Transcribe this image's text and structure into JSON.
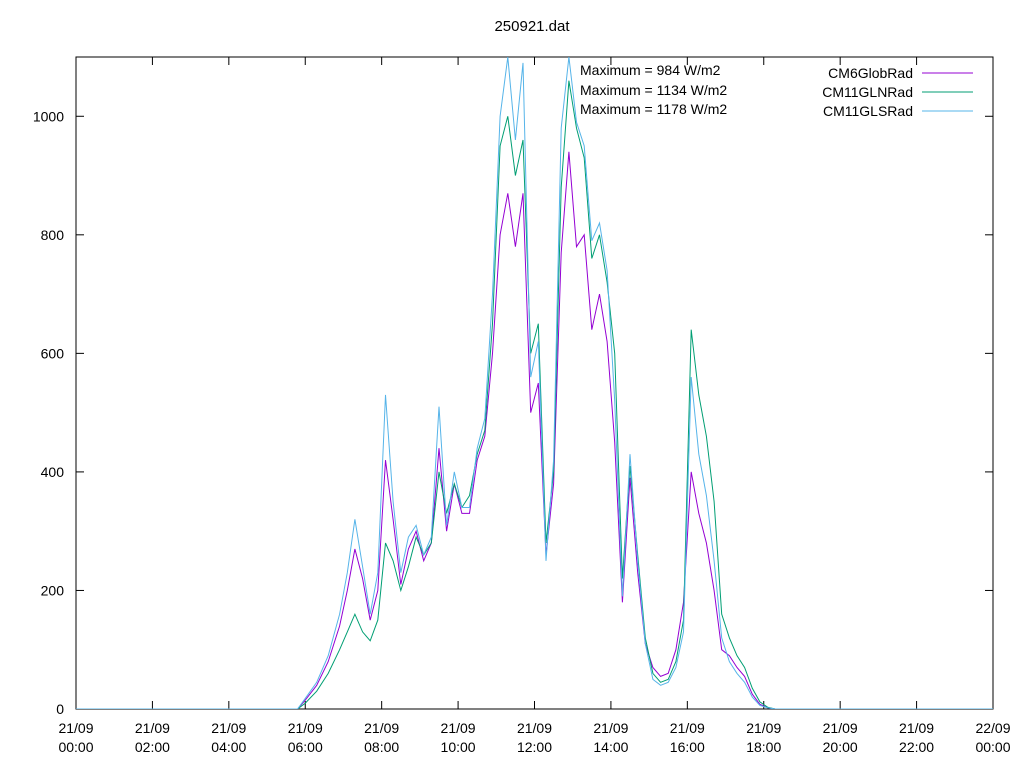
{
  "chart_data": {
    "type": "line",
    "title": "250921.dat",
    "xlabel": "",
    "ylabel": "",
    "x_unit": "hours",
    "xlim": [
      0,
      24
    ],
    "ylim": [
      0,
      1100
    ],
    "x_ticks": [
      {
        "x": 0,
        "l1": "21/09",
        "l2": "00:00"
      },
      {
        "x": 2,
        "l1": "21/09",
        "l2": "02:00"
      },
      {
        "x": 4,
        "l1": "21/09",
        "l2": "04:00"
      },
      {
        "x": 6,
        "l1": "21/09",
        "l2": "06:00"
      },
      {
        "x": 8,
        "l1": "21/09",
        "l2": "08:00"
      },
      {
        "x": 10,
        "l1": "21/09",
        "l2": "10:00"
      },
      {
        "x": 12,
        "l1": "21/09",
        "l2": "12:00"
      },
      {
        "x": 14,
        "l1": "21/09",
        "l2": "14:00"
      },
      {
        "x": 16,
        "l1": "21/09",
        "l2": "16:00"
      },
      {
        "x": 18,
        "l1": "21/09",
        "l2": "18:00"
      },
      {
        "x": 20,
        "l1": "21/09",
        "l2": "20:00"
      },
      {
        "x": 22,
        "l1": "21/09",
        "l2": "22:00"
      },
      {
        "x": 24,
        "l1": "22/09",
        "l2": "00:00"
      }
    ],
    "y_ticks": [
      0,
      200,
      400,
      600,
      800,
      1000
    ],
    "grid": false,
    "legend": "top-right",
    "annotations": [
      "Maximum = 984 W/m2",
      "Maximum = 1134 W/m2",
      "Maximum = 1178 W/m2"
    ],
    "series": [
      {
        "name": "CM6GlobRad",
        "color": "#9400d3",
        "x": [
          0,
          5.8,
          6.0,
          6.3,
          6.6,
          6.9,
          7.1,
          7.3,
          7.5,
          7.7,
          7.9,
          8.1,
          8.3,
          8.5,
          8.7,
          8.9,
          9.1,
          9.3,
          9.5,
          9.7,
          9.9,
          10.1,
          10.3,
          10.5,
          10.7,
          10.9,
          11.1,
          11.3,
          11.5,
          11.7,
          11.9,
          12.1,
          12.3,
          12.5,
          12.7,
          12.9,
          13.1,
          13.3,
          13.5,
          13.7,
          13.9,
          14.1,
          14.3,
          14.5,
          14.7,
          14.9,
          15.1,
          15.3,
          15.5,
          15.7,
          15.9,
          16.1,
          16.3,
          16.5,
          16.7,
          16.9,
          17.1,
          17.3,
          17.5,
          17.7,
          17.9,
          18.1,
          18.3,
          24
        ],
        "y": [
          0,
          0,
          15,
          40,
          80,
          140,
          200,
          270,
          220,
          150,
          200,
          420,
          320,
          210,
          270,
          300,
          250,
          280,
          440,
          300,
          380,
          330,
          330,
          420,
          460,
          600,
          800,
          870,
          780,
          870,
          500,
          550,
          260,
          380,
          770,
          940,
          780,
          800,
          640,
          700,
          620,
          450,
          180,
          390,
          230,
          110,
          70,
          55,
          60,
          100,
          180,
          400,
          330,
          280,
          200,
          100,
          90,
          70,
          55,
          25,
          8,
          2,
          0,
          0
        ]
      },
      {
        "name": "CM11GLNRad",
        "color": "#009e73",
        "x": [
          0,
          5.8,
          6.0,
          6.3,
          6.6,
          6.9,
          7.1,
          7.3,
          7.5,
          7.7,
          7.9,
          8.1,
          8.3,
          8.5,
          8.7,
          8.9,
          9.1,
          9.3,
          9.5,
          9.7,
          9.9,
          10.1,
          10.3,
          10.5,
          10.7,
          10.9,
          11.1,
          11.3,
          11.5,
          11.7,
          11.9,
          12.1,
          12.3,
          12.5,
          12.7,
          12.9,
          13.1,
          13.3,
          13.5,
          13.7,
          13.9,
          14.1,
          14.3,
          14.5,
          14.7,
          14.9,
          15.1,
          15.3,
          15.5,
          15.7,
          15.9,
          16.1,
          16.3,
          16.5,
          16.7,
          16.9,
          17.1,
          17.3,
          17.5,
          17.7,
          17.9,
          18.1,
          18.3,
          24
        ],
        "y": [
          0,
          0,
          10,
          30,
          60,
          100,
          130,
          160,
          130,
          115,
          150,
          280,
          250,
          200,
          240,
          290,
          260,
          280,
          400,
          330,
          380,
          340,
          360,
          430,
          470,
          650,
          950,
          1000,
          900,
          960,
          600,
          650,
          280,
          400,
          880,
          1060,
          980,
          930,
          760,
          800,
          720,
          600,
          220,
          410,
          260,
          120,
          60,
          45,
          50,
          80,
          150,
          640,
          530,
          460,
          350,
          160,
          120,
          90,
          70,
          35,
          12,
          3,
          0,
          0
        ]
      },
      {
        "name": "CM11GLSRad",
        "color": "#56b4e9",
        "x": [
          0,
          5.8,
          6.0,
          6.3,
          6.6,
          6.9,
          7.1,
          7.3,
          7.5,
          7.7,
          7.9,
          8.1,
          8.3,
          8.5,
          8.7,
          8.9,
          9.1,
          9.3,
          9.5,
          9.7,
          9.9,
          10.1,
          10.3,
          10.5,
          10.7,
          10.9,
          11.1,
          11.3,
          11.5,
          11.7,
          11.9,
          12.1,
          12.3,
          12.5,
          12.7,
          12.9,
          13.1,
          13.3,
          13.5,
          13.7,
          13.9,
          14.1,
          14.3,
          14.5,
          14.7,
          14.9,
          15.1,
          15.3,
          15.5,
          15.7,
          15.9,
          16.1,
          16.3,
          16.5,
          16.7,
          16.9,
          17.1,
          17.3,
          17.5,
          17.7,
          17.9,
          18.1,
          18.3,
          24
        ],
        "y": [
          0,
          0,
          18,
          45,
          90,
          160,
          230,
          320,
          240,
          160,
          230,
          530,
          350,
          230,
          290,
          310,
          260,
          290,
          510,
          310,
          400,
          340,
          340,
          440,
          490,
          700,
          1000,
          1100,
          960,
          1090,
          560,
          620,
          250,
          420,
          980,
          1100,
          990,
          950,
          790,
          820,
          740,
          520,
          190,
          430,
          250,
          110,
          50,
          40,
          45,
          70,
          130,
          560,
          430,
          360,
          250,
          120,
          80,
          60,
          45,
          20,
          6,
          2,
          0,
          0
        ]
      }
    ]
  }
}
